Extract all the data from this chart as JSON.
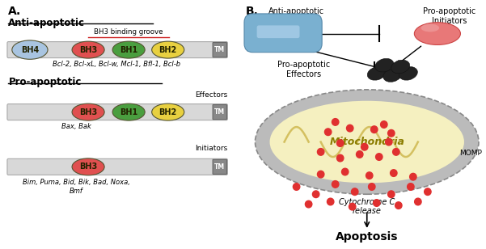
{
  "title_a": "A.",
  "title_b": "B.",
  "anti_apoptotic_label": "Anti-apoptotic",
  "pro_apoptotic_label": "Pro-apoptotic",
  "bh3_groove_label": "BH3 binding groove",
  "effectors_label": "Effectors",
  "initiators_label": "Initiators",
  "anti_proteins": "Bcl-2, Bcl-xL, Bcl-w, Mcl-1, Bfl-1, Bcl-b",
  "effector_proteins": "Bax, Bak",
  "initiator_proteins": "Bim, Puma, Bid, Bik, Bad, Noxa,\nBmf",
  "bh4_color": "#a8c4e0",
  "bh3_color": "#e05050",
  "bh1_color": "#4a9e3f",
  "bh2_color": "#e8d040",
  "tm_color": "#888888",
  "bar_color": "#d8d8d8",
  "bar_border": "#aaaaaa",
  "bg_color": "#ffffff",
  "mito_outer_color": "#bbbbbb",
  "mito_inner_color": "#f5f0c0",
  "mito_label": "Mitochondria",
  "momp_label": "MOMP",
  "cyto_label": "Cytochrome C\nrelease",
  "apoptosis_label": "Apoptosis",
  "anti_b_label": "Anti-apoptotic",
  "pro_initiators_label": "Pro-apoptoti\nInitiators",
  "pro_effectors_label": "Pro-apoptotic\nEffectors",
  "capsule_color": "#7ab0d0",
  "capsule_edge": "#5588aa",
  "init_oval_color": "#e87878",
  "init_oval_edge": "#cc4444",
  "dot_color": "#e03030",
  "effector_blob_color": "#222222",
  "mito_text_color": "#8b7d00"
}
